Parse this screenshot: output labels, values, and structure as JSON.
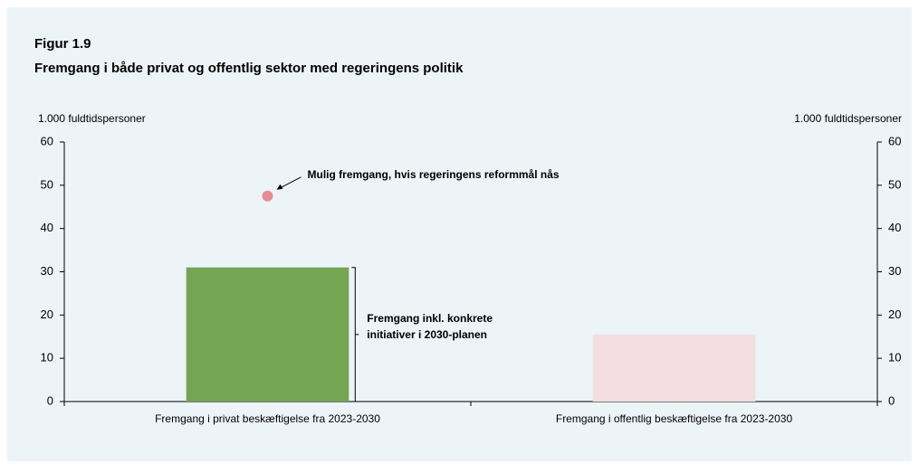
{
  "chart_data": {
    "type": "bar",
    "title": "Figur 1.9",
    "subtitle": "Fremgang i både privat og offentlig sektor med regeringens politik",
    "ylabel": "1.000 fuldtidspersoner",
    "y2label": "1.000 fuldtidspersoner",
    "categories": [
      "Fremgang i privat beskæftigelse fra 2023-2030",
      "Fremgang i offentlig beskæftigelse fra 2023-2030"
    ],
    "values": [
      31,
      15.5
    ],
    "colors": [
      "#74a553",
      "#f4dde0"
    ],
    "markers": [
      47.5,
      null
    ],
    "marker_color": "#e48f8f",
    "annotations": [
      "Mulig fremgang, hvis regeringens reformmål nås",
      [
        "Fremgang inkl. konkrete",
        "initiativer i 2030-planen"
      ]
    ],
    "ylim": [
      0,
      60
    ],
    "yticks": [
      0,
      10,
      20,
      30,
      40,
      50,
      60
    ],
    "y2lim": [
      0,
      60
    ],
    "y2ticks": [
      0,
      10,
      20,
      30,
      40,
      50,
      60
    ],
    "grid": false
  }
}
